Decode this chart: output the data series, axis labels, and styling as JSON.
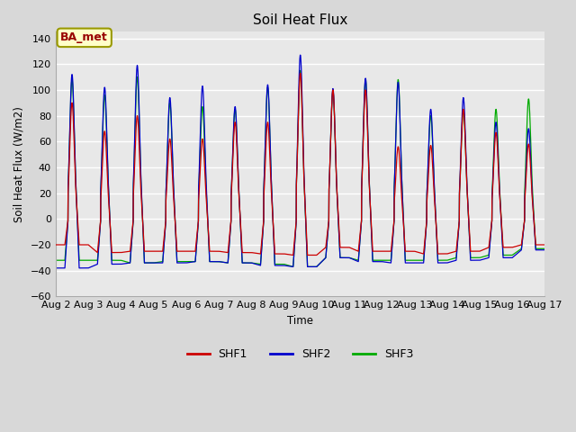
{
  "title": "Soil Heat Flux",
  "ylabel": "Soil Heat Flux (W/m2)",
  "xlabel": "Time",
  "ylim": [
    -60,
    145
  ],
  "yticks": [
    -60,
    -40,
    -20,
    0,
    20,
    40,
    60,
    80,
    100,
    120,
    140
  ],
  "background_color": "#d8d8d8",
  "plot_bg_color": "#e8e8e8",
  "grid_color": "white",
  "line_colors": {
    "SHF1": "#cc0000",
    "SHF2": "#0000cc",
    "SHF3": "#00aa00"
  },
  "legend_label": "BA_met",
  "legend_fg": "#990000",
  "legend_bg": "#ffffc8",
  "legend_border": "#999900",
  "num_days": 15,
  "xtick_labels": [
    "Aug 2",
    "Aug 3",
    "Aug 4",
    "Aug 5",
    "Aug 6",
    "Aug 7",
    "Aug 8",
    "Aug 9",
    "Aug 10",
    "Aug 11",
    "Aug 12",
    "Aug 13",
    "Aug 14",
    "Aug 15",
    "Aug 16",
    "Aug 17"
  ],
  "shf2_peaks": [
    112,
    102,
    119,
    94,
    103,
    87,
    104,
    127,
    101,
    109,
    106,
    85,
    94,
    75,
    70
  ],
  "shf3_peaks": [
    108,
    96,
    110,
    90,
    87,
    85,
    102,
    115,
    99,
    108,
    108,
    80,
    85,
    85,
    93
  ],
  "shf1_peaks": [
    90,
    68,
    80,
    62,
    62,
    75,
    75,
    113,
    100,
    100,
    56,
    57,
    85,
    67,
    58
  ],
  "shf1_nights": [
    -20,
    -26,
    -25,
    -25,
    -25,
    -26,
    -27,
    -28,
    -22,
    -25,
    -25,
    -27,
    -25,
    -22,
    -20
  ],
  "shf2_nights": [
    -38,
    -35,
    -34,
    -34,
    -33,
    -34,
    -36,
    -37,
    -30,
    -33,
    -34,
    -34,
    -32,
    -30,
    -24
  ],
  "shf3_nights": [
    -32,
    -32,
    -34,
    -33,
    -33,
    -34,
    -35,
    -37,
    -30,
    -32,
    -32,
    -32,
    -30,
    -28,
    -23
  ],
  "points_per_day": 200
}
